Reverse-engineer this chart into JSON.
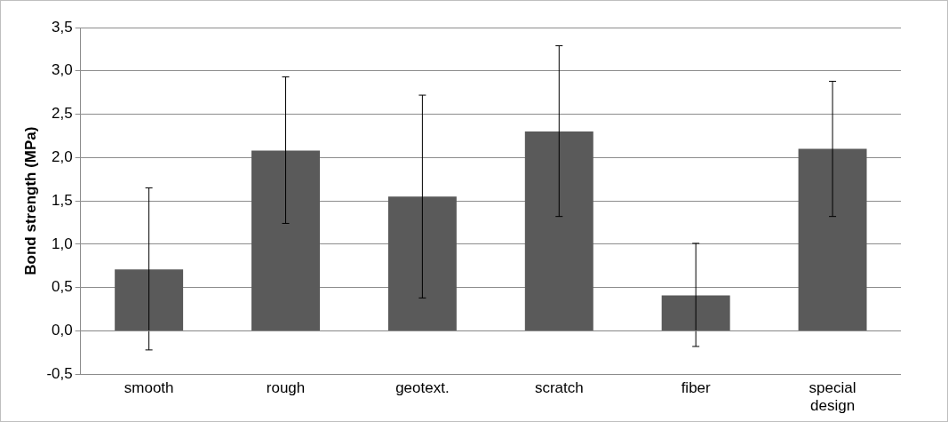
{
  "chart_data": {
    "type": "bar",
    "ylabel": "Bond strength (MPa)",
    "categories": [
      "smooth",
      "rough",
      "geotext.",
      "scratch",
      "fiber",
      "special design"
    ],
    "values": [
      0.71,
      2.08,
      1.55,
      2.3,
      0.41,
      2.1
    ],
    "errors": [
      [
        -0.22,
        1.65
      ],
      [
        1.24,
        2.93
      ],
      [
        0.38,
        2.72
      ],
      [
        1.32,
        3.29
      ],
      [
        -0.18,
        1.01
      ],
      [
        1.32,
        2.88
      ]
    ],
    "color": "#5a5a5a",
    "ylim": [
      -0.5,
      3.5
    ],
    "yticks": [
      {
        "value": -0.5,
        "label": "-0,5"
      },
      {
        "value": 0,
        "label": "0,0"
      },
      {
        "value": 0.5,
        "label": "0,5"
      },
      {
        "value": 1,
        "label": "1,0"
      },
      {
        "value": 1.5,
        "label": "1,5"
      },
      {
        "value": 2,
        "label": "2,0"
      },
      {
        "value": 2.5,
        "label": "2,5"
      },
      {
        "value": 3,
        "label": "3,0"
      },
      {
        "value": 3.5,
        "label": "3,5"
      }
    ],
    "grid": "y",
    "legend": false
  }
}
